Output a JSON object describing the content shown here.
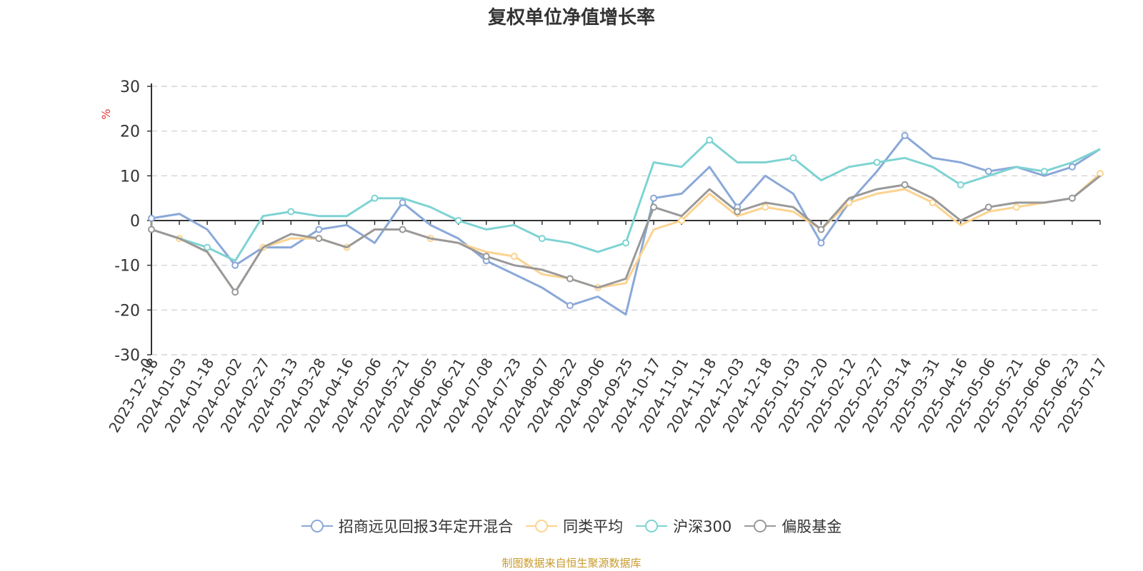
{
  "title": "复权单位净值增长率",
  "source_note": "制图数据来自恒生聚源数据库",
  "chart_data": {
    "type": "line",
    "title": "复权单位净值增长率",
    "ylabel": "%",
    "ylim": [
      -30,
      30
    ],
    "yticks": [
      -30,
      -20,
      -10,
      0,
      10,
      20,
      30
    ],
    "grid": true,
    "legend_position": "bottom",
    "x_start_label": "0",
    "x": [
      "2023-12-18",
      "2024-01-03",
      "2024-01-18",
      "2024-02-02",
      "2024-02-27",
      "2024-03-13",
      "2024-03-28",
      "2024-04-16",
      "2024-05-06",
      "2024-05-21",
      "2024-06-05",
      "2024-06-21",
      "2024-07-08",
      "2024-07-23",
      "2024-08-07",
      "2024-08-22",
      "2024-09-06",
      "2024-09-25",
      "2024-10-17",
      "2024-11-01",
      "2024-11-18",
      "2024-12-03",
      "2024-12-18",
      "2025-01-03",
      "2025-01-20",
      "2025-02-12",
      "2025-02-27",
      "2025-03-14",
      "2025-03-31",
      "2025-04-16",
      "2025-05-06",
      "2025-05-21",
      "2025-06-06",
      "2025-06-23",
      "2025-07-17"
    ],
    "series": [
      {
        "name": "招商远见回报3年定开混合",
        "color": "#8aa8d8",
        "values": [
          0.5,
          1.5,
          -2,
          -10,
          -6,
          -6,
          -2,
          -1,
          -5,
          4,
          -1,
          -4,
          -9,
          -12,
          -15,
          -19,
          -17,
          -21,
          5,
          6,
          12,
          3,
          10,
          6,
          -5,
          4,
          11,
          19,
          14,
          13,
          11,
          12,
          10,
          12,
          16
        ]
      },
      {
        "name": "同类平均",
        "color": "#fcd38f",
        "values": [
          -2,
          -4,
          -7,
          -16,
          -6,
          -4,
          -4,
          -6,
          -2,
          -2,
          -4,
          -5,
          -7,
          -8,
          -12,
          -13,
          -15,
          -14,
          -2,
          0,
          6,
          1,
          3,
          2,
          -2,
          4,
          6,
          7,
          4,
          -1,
          2,
          3,
          4,
          5,
          10.5
        ]
      },
      {
        "name": "沪深300",
        "color": "#7fd3d3",
        "values": [
          -2,
          -4,
          -6,
          -9,
          1,
          2,
          1,
          1,
          5,
          5,
          3,
          0,
          -2,
          -1,
          -4,
          -5,
          -7,
          -5,
          13,
          12,
          18,
          13,
          13,
          14,
          9,
          12,
          13,
          14,
          12,
          8,
          10,
          12,
          11,
          13,
          16
        ]
      },
      {
        "name": "偏股基金",
        "color": "#999999",
        "values": [
          -2,
          -4,
          -7,
          -16,
          -6,
          -3,
          -4,
          -6,
          -2,
          -2,
          -4,
          -5,
          -8,
          -10,
          -11,
          -13,
          -15,
          -13,
          3,
          1,
          7,
          2,
          4,
          3,
          -2,
          5,
          7,
          8,
          5,
          0,
          3,
          4,
          4,
          5,
          10
        ]
      }
    ]
  }
}
